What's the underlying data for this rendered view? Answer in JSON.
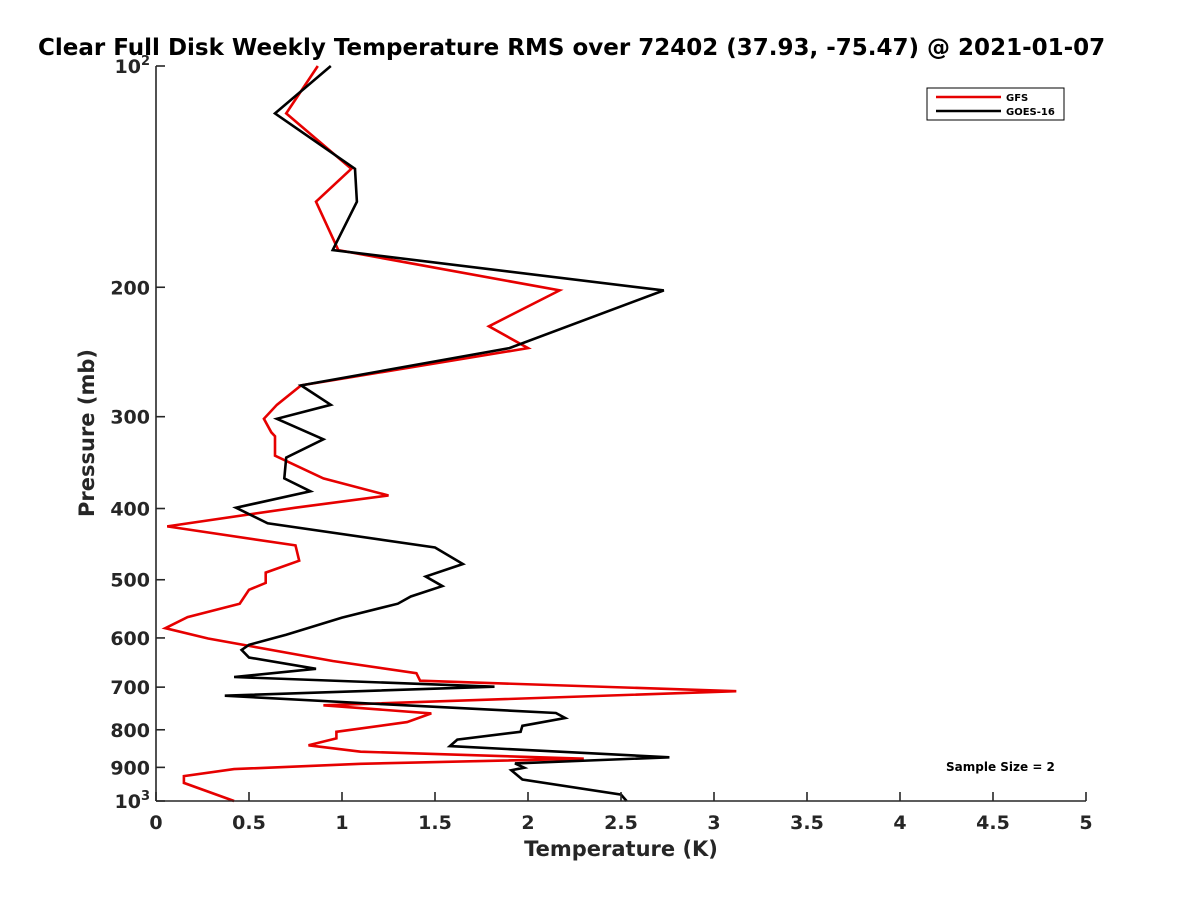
{
  "chart_data": {
    "type": "line",
    "title": "Clear Full Disk Weekly Temperature RMS over 72402 (37.93, -75.47) @ 2021-01-07",
    "xlabel": "Temperature (K)",
    "ylabel": "Pressure (mb)",
    "xlim": [
      0,
      5
    ],
    "ylim": [
      100,
      1000
    ],
    "yscale": "log",
    "yreversed": true,
    "x_ticks": [
      "0",
      "0.5",
      "1",
      "1.5",
      "2",
      "2.5",
      "3",
      "3.5",
      "4",
      "4.5",
      "5"
    ],
    "y_ticks": [
      {
        "value": 100,
        "base": "10",
        "exp": "2"
      },
      {
        "value": 200,
        "label": "200"
      },
      {
        "value": 300,
        "label": "300"
      },
      {
        "value": 400,
        "label": "400"
      },
      {
        "value": 500,
        "label": "500"
      },
      {
        "value": 600,
        "label": "600"
      },
      {
        "value": 700,
        "label": "700"
      },
      {
        "value": 800,
        "label": "800"
      },
      {
        "value": 900,
        "label": "900"
      },
      {
        "value": 1000,
        "base": "10",
        "exp": "3"
      }
    ],
    "legend_position": "top-right",
    "annotation": "Sample Size = 2",
    "series": [
      {
        "name": "GFS",
        "color": "#e60000",
        "points": [
          [
            0.87,
            100
          ],
          [
            0.7,
            116
          ],
          [
            1.05,
            138
          ],
          [
            0.86,
            153
          ],
          [
            0.98,
            178
          ],
          [
            2.17,
            202
          ],
          [
            1.79,
            226
          ],
          [
            2.0,
            242
          ],
          [
            0.78,
            272
          ],
          [
            0.65,
            289
          ],
          [
            0.58,
            302
          ],
          [
            0.62,
            315
          ],
          [
            0.64,
            319
          ],
          [
            0.64,
            339
          ],
          [
            0.9,
            364
          ],
          [
            1.25,
            384
          ],
          [
            0.75,
            399
          ],
          [
            0.06,
            423
          ],
          [
            0.75,
            449
          ],
          [
            0.77,
            471
          ],
          [
            0.59,
            489
          ],
          [
            0.59,
            505
          ],
          [
            0.5,
            516
          ],
          [
            0.45,
            539
          ],
          [
            0.17,
            562
          ],
          [
            0.05,
            582
          ],
          [
            0.28,
            601
          ],
          [
            0.95,
            645
          ],
          [
            1.4,
            670
          ],
          [
            1.42,
            686
          ],
          [
            3.12,
            709
          ],
          [
            0.9,
            741
          ],
          [
            1.48,
            760
          ],
          [
            1.35,
            781
          ],
          [
            0.97,
            805
          ],
          [
            0.97,
            822
          ],
          [
            0.82,
            840
          ],
          [
            1.1,
            857
          ],
          [
            2.3,
            876
          ],
          [
            1.1,
            890
          ],
          [
            0.42,
            905
          ],
          [
            0.15,
            925
          ],
          [
            0.15,
            945
          ],
          [
            0.42,
            1000
          ]
        ]
      },
      {
        "name": "GOES-16",
        "color": "#000000",
        "points": [
          [
            0.94,
            100
          ],
          [
            0.64,
            116
          ],
          [
            1.07,
            138
          ],
          [
            1.08,
            153
          ],
          [
            0.95,
            178
          ],
          [
            2.73,
            202
          ],
          [
            1.9,
            242
          ],
          [
            0.78,
            272
          ],
          [
            0.94,
            289
          ],
          [
            0.65,
            302
          ],
          [
            0.9,
            322
          ],
          [
            0.7,
            341
          ],
          [
            0.69,
            364
          ],
          [
            0.83,
            379
          ],
          [
            0.43,
            399
          ],
          [
            0.6,
            419
          ],
          [
            1.5,
            452
          ],
          [
            1.65,
            476
          ],
          [
            1.45,
            495
          ],
          [
            1.54,
            510
          ],
          [
            1.37,
            527
          ],
          [
            1.3,
            539
          ],
          [
            1.0,
            563
          ],
          [
            0.7,
            594
          ],
          [
            0.5,
            613
          ],
          [
            0.46,
            623
          ],
          [
            0.5,
            638
          ],
          [
            0.86,
            661
          ],
          [
            0.42,
            678
          ],
          [
            1.82,
            699
          ],
          [
            0.37,
            719
          ],
          [
            1.2,
            738
          ],
          [
            2.15,
            759
          ],
          [
            2.2,
            771
          ],
          [
            1.97,
            790
          ],
          [
            1.96,
            805
          ],
          [
            1.62,
            825
          ],
          [
            1.58,
            842
          ],
          [
            2.76,
            872
          ],
          [
            1.93,
            889
          ],
          [
            1.98,
            901
          ],
          [
            1.91,
            908
          ],
          [
            1.97,
            935
          ],
          [
            2.5,
            980
          ],
          [
            2.53,
            1000
          ]
        ]
      }
    ]
  }
}
